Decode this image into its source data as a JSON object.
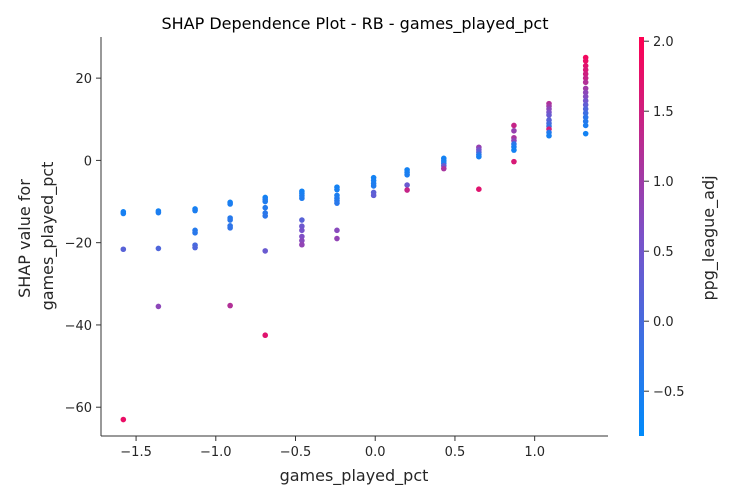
{
  "chart_data": {
    "type": "scatter",
    "title": "SHAP Dependence Plot - RB - games_played_pct",
    "xlabel": "games_played_pct",
    "ylabel_lines": [
      "SHAP value for",
      "games_played_pct"
    ],
    "colorbar_label": "ppg_league_adj",
    "xlim": [
      -1.72,
      1.46
    ],
    "ylim": [
      -67,
      30
    ],
    "xticks": [
      -1.5,
      -1.0,
      -0.5,
      0.0,
      0.5,
      1.0
    ],
    "xtick_labels": [
      "−1.5",
      "−1.0",
      "−0.5",
      "0.0",
      "0.5",
      "1.0"
    ],
    "yticks": [
      -60,
      -40,
      -20,
      0,
      20
    ],
    "ytick_labels": [
      "−60",
      "−40",
      "−20",
      "0",
      "20"
    ],
    "color_range": [
      -0.82,
      2.03
    ],
    "cticks": [
      -0.5,
      0.0,
      0.5,
      1.0,
      1.5,
      2.0
    ],
    "ctick_labels": [
      "−0.5",
      "0.0",
      "0.5",
      "1.0",
      "1.5",
      "2.0"
    ],
    "colormap": [
      "#008bfb",
      "#ff0052"
    ],
    "grid": false,
    "points": [
      {
        "x": -1.58,
        "y": -12.5,
        "c": -0.6
      },
      {
        "x": -1.58,
        "y": -12.9,
        "c": -0.55
      },
      {
        "x": -1.58,
        "y": -21.6,
        "c": 0.2
      },
      {
        "x": -1.58,
        "y": -63.0,
        "c": 1.8
      },
      {
        "x": -1.36,
        "y": -12.3,
        "c": -0.6
      },
      {
        "x": -1.36,
        "y": -12.7,
        "c": -0.5
      },
      {
        "x": -1.36,
        "y": -21.4,
        "c": 0.1
      },
      {
        "x": -1.36,
        "y": -35.5,
        "c": 0.8
      },
      {
        "x": -1.13,
        "y": -11.8,
        "c": -0.6
      },
      {
        "x": -1.13,
        "y": -12.2,
        "c": -0.5
      },
      {
        "x": -1.13,
        "y": -17.0,
        "c": -0.4
      },
      {
        "x": -1.13,
        "y": -17.6,
        "c": -0.35
      },
      {
        "x": -1.13,
        "y": -20.6,
        "c": 0.0
      },
      {
        "x": -1.13,
        "y": -21.2,
        "c": 0.1
      },
      {
        "x": -0.91,
        "y": -10.2,
        "c": -0.6
      },
      {
        "x": -0.91,
        "y": -10.6,
        "c": -0.5
      },
      {
        "x": -0.91,
        "y": -14.0,
        "c": -0.4
      },
      {
        "x": -0.91,
        "y": -14.5,
        "c": -0.35
      },
      {
        "x": -0.91,
        "y": -15.9,
        "c": -0.3
      },
      {
        "x": -0.91,
        "y": -16.4,
        "c": -0.25
      },
      {
        "x": -0.91,
        "y": -35.3,
        "c": 1.2
      },
      {
        "x": -0.69,
        "y": -9.0,
        "c": -0.6
      },
      {
        "x": -0.69,
        "y": -9.5,
        "c": -0.5
      },
      {
        "x": -0.69,
        "y": -10.0,
        "c": -0.45
      },
      {
        "x": -0.69,
        "y": -11.5,
        "c": -0.4
      },
      {
        "x": -0.69,
        "y": -12.8,
        "c": -0.35
      },
      {
        "x": -0.69,
        "y": -13.5,
        "c": -0.3
      },
      {
        "x": -0.69,
        "y": -22.0,
        "c": 0.4
      },
      {
        "x": -0.69,
        "y": -42.5,
        "c": 1.7
      },
      {
        "x": -0.46,
        "y": -7.5,
        "c": -0.6
      },
      {
        "x": -0.46,
        "y": -8.0,
        "c": -0.55
      },
      {
        "x": -0.46,
        "y": -8.6,
        "c": -0.5
      },
      {
        "x": -0.46,
        "y": -9.2,
        "c": -0.45
      },
      {
        "x": -0.46,
        "y": -14.5,
        "c": 0.2
      },
      {
        "x": -0.46,
        "y": -16.0,
        "c": 0.45
      },
      {
        "x": -0.46,
        "y": -17.0,
        "c": 0.55
      },
      {
        "x": -0.46,
        "y": -18.5,
        "c": 0.65
      },
      {
        "x": -0.46,
        "y": -19.5,
        "c": 0.75
      },
      {
        "x": -0.46,
        "y": -20.5,
        "c": 0.85
      },
      {
        "x": -0.24,
        "y": -6.5,
        "c": -0.6
      },
      {
        "x": -0.24,
        "y": -7.1,
        "c": -0.55
      },
      {
        "x": -0.24,
        "y": -8.5,
        "c": -0.5
      },
      {
        "x": -0.24,
        "y": -9.2,
        "c": -0.45
      },
      {
        "x": -0.24,
        "y": -9.8,
        "c": -0.4
      },
      {
        "x": -0.24,
        "y": -10.4,
        "c": -0.35
      },
      {
        "x": -0.24,
        "y": -17.0,
        "c": 0.75
      },
      {
        "x": -0.24,
        "y": -19.0,
        "c": 0.85
      },
      {
        "x": -0.01,
        "y": -4.2,
        "c": -0.6
      },
      {
        "x": -0.01,
        "y": -4.9,
        "c": -0.55
      },
      {
        "x": -0.01,
        "y": -5.6,
        "c": -0.5
      },
      {
        "x": -0.01,
        "y": -6.2,
        "c": -0.45
      },
      {
        "x": -0.01,
        "y": -7.8,
        "c": 0.25
      },
      {
        "x": -0.01,
        "y": -8.5,
        "c": 0.3
      },
      {
        "x": 0.2,
        "y": -2.3,
        "c": -0.6
      },
      {
        "x": 0.2,
        "y": -2.9,
        "c": -0.55
      },
      {
        "x": 0.2,
        "y": -3.5,
        "c": -0.5
      },
      {
        "x": 0.2,
        "y": -6.0,
        "c": 0.4
      },
      {
        "x": 0.2,
        "y": -7.2,
        "c": 1.4
      },
      {
        "x": 0.43,
        "y": 0.5,
        "c": -0.6
      },
      {
        "x": 0.43,
        "y": -0.1,
        "c": -0.55
      },
      {
        "x": 0.43,
        "y": -0.7,
        "c": -0.5
      },
      {
        "x": 0.43,
        "y": -1.3,
        "c": 0.4
      },
      {
        "x": 0.43,
        "y": -2.0,
        "c": 1.1
      },
      {
        "x": 0.65,
        "y": 3.2,
        "c": 0.9
      },
      {
        "x": 0.65,
        "y": 2.6,
        "c": 0.6
      },
      {
        "x": 0.65,
        "y": 2.0,
        "c": 0.2
      },
      {
        "x": 0.65,
        "y": 1.4,
        "c": -0.3
      },
      {
        "x": 0.65,
        "y": 0.9,
        "c": -0.55
      },
      {
        "x": 0.65,
        "y": -7.0,
        "c": 1.7
      },
      {
        "x": 0.87,
        "y": 8.5,
        "c": 1.4
      },
      {
        "x": 0.87,
        "y": 7.2,
        "c": 0.9
      },
      {
        "x": 0.87,
        "y": 5.5,
        "c": 1.1
      },
      {
        "x": 0.87,
        "y": 4.8,
        "c": 0.8
      },
      {
        "x": 0.87,
        "y": 4.0,
        "c": -0.3
      },
      {
        "x": 0.87,
        "y": 3.3,
        "c": -0.5
      },
      {
        "x": 0.87,
        "y": 2.5,
        "c": -0.6
      },
      {
        "x": 0.87,
        "y": -0.3,
        "c": 1.6
      },
      {
        "x": 1.09,
        "y": 13.8,
        "c": 1.2
      },
      {
        "x": 1.09,
        "y": 13.2,
        "c": 1.0
      },
      {
        "x": 1.09,
        "y": 12.5,
        "c": 0.8
      },
      {
        "x": 1.09,
        "y": 11.7,
        "c": 0.6
      },
      {
        "x": 1.09,
        "y": 11.0,
        "c": 0.4
      },
      {
        "x": 1.09,
        "y": 9.8,
        "c": 0.2
      },
      {
        "x": 1.09,
        "y": 9.0,
        "c": 0.0
      },
      {
        "x": 1.09,
        "y": 8.3,
        "c": -0.2
      },
      {
        "x": 1.09,
        "y": 7.6,
        "c": 1.5
      },
      {
        "x": 1.09,
        "y": 6.8,
        "c": -0.4
      },
      {
        "x": 1.09,
        "y": 6.0,
        "c": -0.55
      },
      {
        "x": 1.32,
        "y": 25.0,
        "c": 1.9
      },
      {
        "x": 1.32,
        "y": 24.2,
        "c": 1.8
      },
      {
        "x": 1.32,
        "y": 23.0,
        "c": 1.7
      },
      {
        "x": 1.32,
        "y": 22.0,
        "c": 1.6
      },
      {
        "x": 1.32,
        "y": 21.0,
        "c": 1.5
      },
      {
        "x": 1.32,
        "y": 20.0,
        "c": 1.4
      },
      {
        "x": 1.32,
        "y": 19.0,
        "c": 1.2
      },
      {
        "x": 1.32,
        "y": 17.5,
        "c": 1.0
      },
      {
        "x": 1.32,
        "y": 16.5,
        "c": 0.8
      },
      {
        "x": 1.32,
        "y": 15.5,
        "c": 0.7
      },
      {
        "x": 1.32,
        "y": 14.5,
        "c": 0.5
      },
      {
        "x": 1.32,
        "y": 13.5,
        "c": 0.3
      },
      {
        "x": 1.32,
        "y": 12.5,
        "c": 0.1
      },
      {
        "x": 1.32,
        "y": 11.5,
        "c": -0.1
      },
      {
        "x": 1.32,
        "y": 10.5,
        "c": -0.3
      },
      {
        "x": 1.32,
        "y": 9.5,
        "c": -0.4
      },
      {
        "x": 1.32,
        "y": 8.5,
        "c": -0.5
      },
      {
        "x": 1.32,
        "y": 6.5,
        "c": -0.6
      }
    ]
  }
}
